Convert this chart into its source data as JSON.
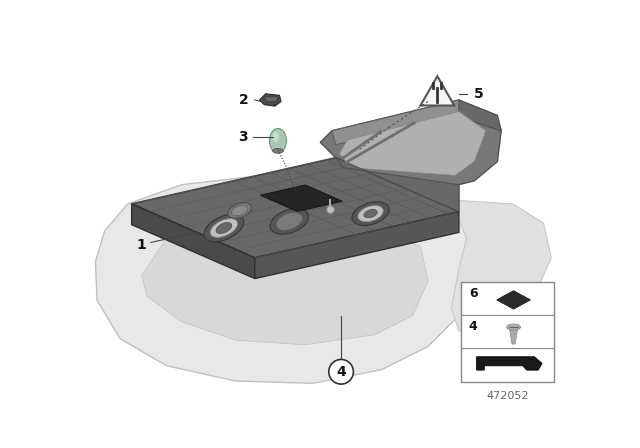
{
  "background_color": "#ffffff",
  "diagram_number": "472052",
  "main_unit_color": "#686868",
  "main_unit_dark": "#4a4a4a",
  "main_unit_side": "#525252",
  "housing_color": "#d0d0d0",
  "housing_edge": "#aaaaaa",
  "back_frame_color": "#787878",
  "back_frame_edge": "#555555",
  "label_color": "#111111",
  "line_color": "#444444",
  "inset_border": "#888888",
  "pad_color": "#2a2a2a",
  "screw_color": "#aaaaaa",
  "clip_color": "#1a1a1a",
  "tri_fill": "#f5f5f5",
  "tri_edge": "#666666",
  "bulb_color": "#a8c8b0",
  "cap_color": "#3a3a3a"
}
